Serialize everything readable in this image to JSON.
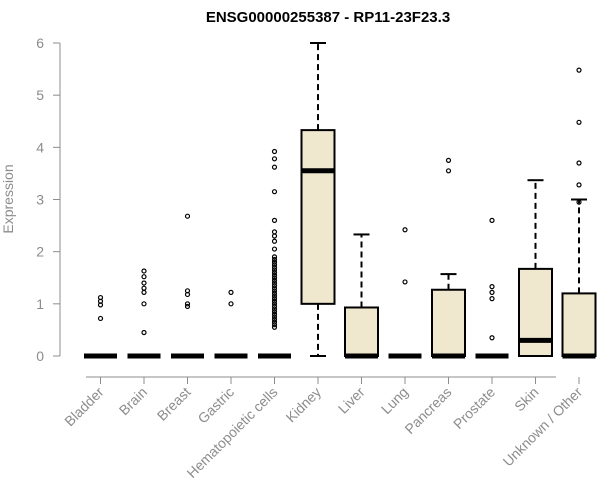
{
  "chart_data": {
    "type": "boxplot",
    "title": "ENSG00000255387 - RP11-23F23.3",
    "xlabel": "",
    "ylabel": "Expression",
    "ylim": [
      0,
      6
    ],
    "yticks": [
      0,
      1,
      2,
      3,
      4,
      5,
      6
    ],
    "grid": false,
    "legend": "none",
    "box_fill": "#efe8cf",
    "categories": [
      "Bladder",
      "Brain",
      "Breast",
      "Gastric",
      "Hematopoietic cells",
      "Kidney",
      "Liver",
      "Lung",
      "Pancreas",
      "Prostate",
      "Skin",
      "Unknown / Other"
    ],
    "boxes": [
      {
        "min": 0,
        "q1": 0,
        "median": 0,
        "q3": 0,
        "max": 0,
        "outliers": [
          0.72,
          0.98,
          1.05,
          1.12
        ]
      },
      {
        "min": 0,
        "q1": 0,
        "median": 0,
        "q3": 0,
        "max": 0,
        "outliers": [
          0.45,
          1.0,
          1.22,
          1.3,
          1.4,
          1.52,
          1.63
        ]
      },
      {
        "min": 0,
        "q1": 0,
        "median": 0,
        "q3": 0,
        "max": 0,
        "outliers": [
          0.95,
          1.0,
          1.18,
          1.25,
          2.68
        ]
      },
      {
        "min": 0,
        "q1": 0,
        "median": 0,
        "q3": 0,
        "max": 0,
        "outliers": [
          1.0,
          1.22
        ]
      },
      {
        "min": 0,
        "q1": 0,
        "median": 0,
        "q3": 0,
        "max": 0,
        "outliers": [
          0.55,
          0.6,
          0.65,
          0.7,
          0.75,
          0.8,
          0.85,
          0.9,
          0.95,
          1.0,
          1.05,
          1.1,
          1.15,
          1.2,
          1.25,
          1.3,
          1.35,
          1.4,
          1.45,
          1.5,
          1.55,
          1.6,
          1.65,
          1.7,
          1.75,
          1.8,
          1.85,
          1.9,
          2.05,
          2.2,
          2.3,
          2.38,
          2.6,
          3.15,
          3.62,
          3.78,
          3.92
        ]
      },
      {
        "min": 0,
        "q1": 1.0,
        "median": 3.55,
        "q3": 4.33,
        "max": 6.0,
        "outliers": []
      },
      {
        "min": 0,
        "q1": 0,
        "median": 0,
        "q3": 0.93,
        "max": 2.33,
        "outliers": []
      },
      {
        "min": 0,
        "q1": 0,
        "median": 0,
        "q3": 0,
        "max": 0,
        "outliers": [
          1.42,
          2.42
        ]
      },
      {
        "min": 0,
        "q1": 0,
        "median": 0,
        "q3": 1.27,
        "max": 1.57,
        "outliers": [
          3.55,
          3.75
        ]
      },
      {
        "min": 0,
        "q1": 0,
        "median": 0,
        "q3": 0,
        "max": 0,
        "outliers": [
          0.35,
          1.1,
          1.22,
          1.33,
          2.6
        ]
      },
      {
        "min": 0,
        "q1": 0,
        "median": 0.3,
        "q3": 1.67,
        "max": 3.37,
        "outliers": []
      },
      {
        "min": 0,
        "q1": 0,
        "median": 0,
        "q3": 1.2,
        "max": 3.0,
        "outliers": [
          2.95,
          3.28,
          3.7,
          4.48,
          5.48
        ]
      }
    ]
  }
}
